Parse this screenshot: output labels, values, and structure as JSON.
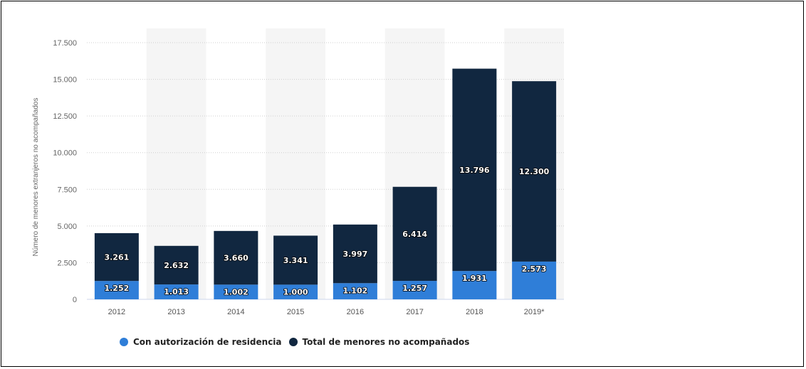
{
  "chart_data": {
    "type": "bar",
    "stacked": true,
    "categories": [
      "2012",
      "2013",
      "2014",
      "2015",
      "2016",
      "2017",
      "2018",
      "2019*"
    ],
    "series": [
      {
        "name": "Con autorización de residencia",
        "color": "#2f7ed8",
        "values": [
          1252,
          1013,
          1002,
          1000,
          1102,
          1257,
          1931,
          2573
        ]
      },
      {
        "name": "Total de menores no acompañados",
        "color": "#112740",
        "values": [
          3261,
          2632,
          3660,
          3341,
          3997,
          6414,
          13796,
          12300
        ]
      }
    ],
    "ylabel": "Número de menores extranjeros no acompañados",
    "ylim": [
      0,
      17500
    ],
    "yticks": [
      0,
      2500,
      5000,
      7500,
      10000,
      12500,
      15000,
      17500
    ],
    "ytick_labels": [
      "0",
      "2.500",
      "5.000",
      "7.500",
      "10.000",
      "12.500",
      "15.000",
      "17.500"
    ],
    "data_labels": [
      [
        "1.252",
        "1.013",
        "1.002",
        "1.000",
        "1.102",
        "1.257",
        "1.931",
        "2.573"
      ],
      [
        "3.261",
        "2.632",
        "3.660",
        "3.341",
        "3.997",
        "6.414",
        "13.796",
        "12.300"
      ]
    ],
    "grid": true,
    "legend_position": "bottom"
  }
}
